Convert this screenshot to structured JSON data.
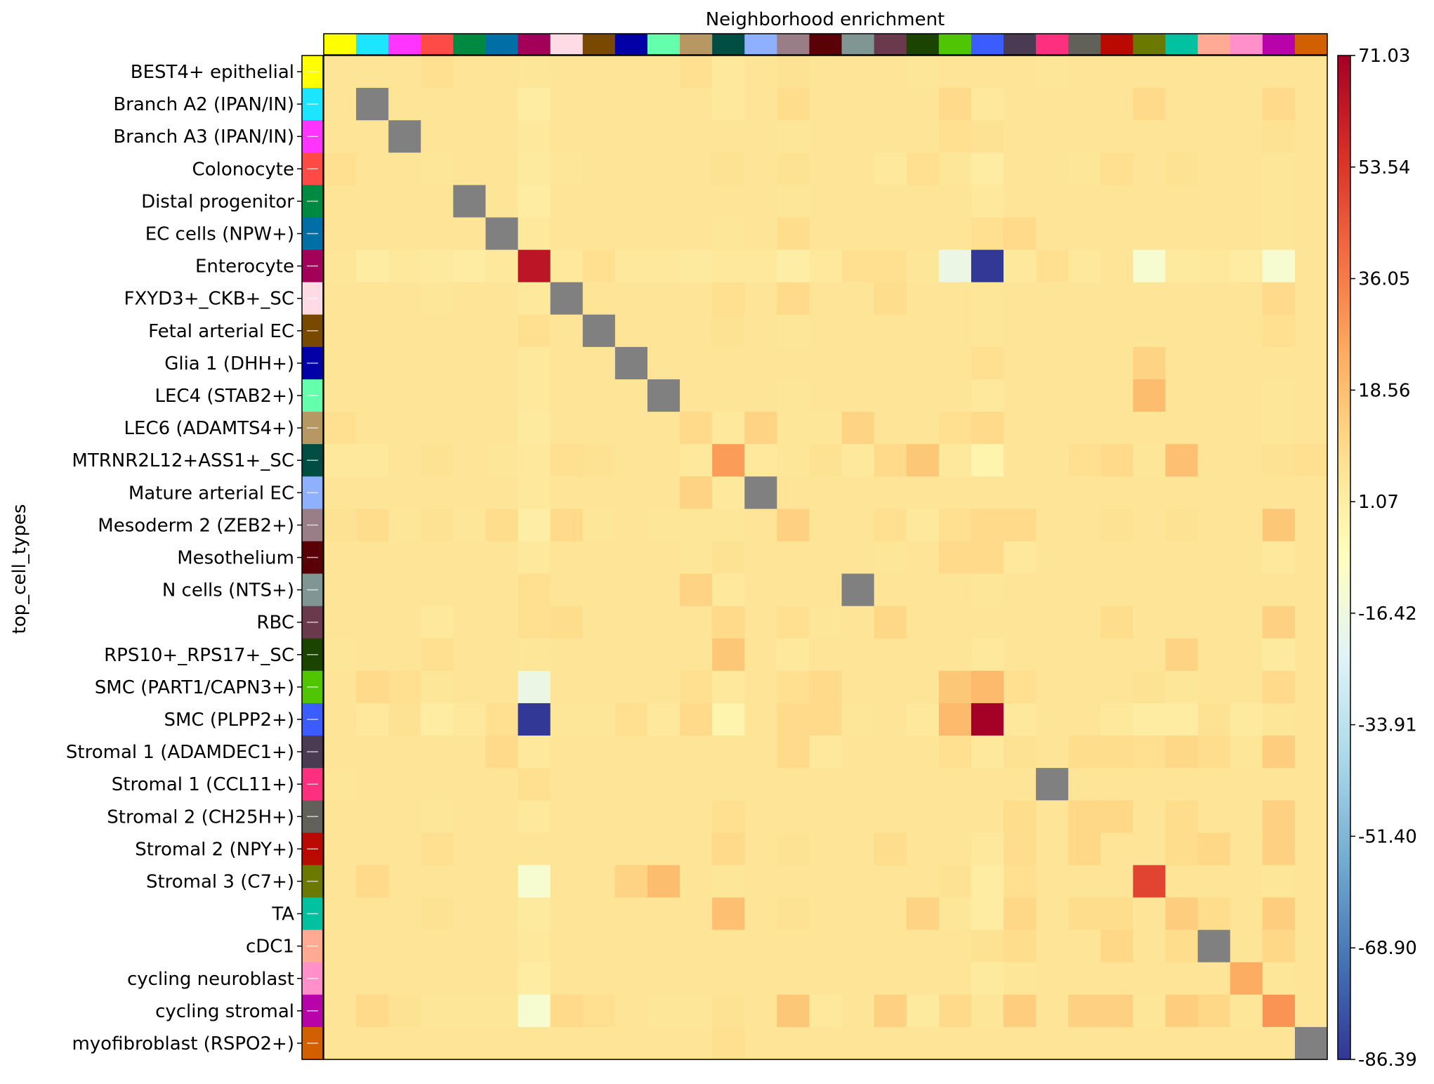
{
  "chart_data": {
    "type": "heatmap",
    "title": "Neighborhood enrichment",
    "ylabel": "top_cell_types",
    "xlabel": "",
    "categories": [
      "BEST4+ epithelial",
      "Branch A2 (IPAN/IN)",
      "Branch A3 (IPAN/IN)",
      "Colonocyte",
      "Distal progenitor",
      "EC cells (NPW+)",
      "Enterocyte",
      "FXYD3+_CKB+_SC",
      "Fetal arterial EC",
      "Glia 1 (DHH+)",
      "LEC4 (STAB2+)",
      "LEC6 (ADAMTS4+)",
      "MTRNR2L12+ASS1+_SC",
      "Mature arterial EC",
      "Mesoderm 2 (ZEB2+)",
      "Mesothelium",
      "N cells (NTS+)",
      "RBC",
      "RPS10+_RPS17+_SC",
      "SMC (PART1/CAPN3+)",
      "SMC (PLPP2+)",
      "Stromal 1 (ADAMDEC1+)",
      "Stromal 1 (CCL11+)",
      "Stromal 2 (CH25H+)",
      "Stromal 2 (NPY+)",
      "Stromal 3 (C7+)",
      "TA",
      "cDC1",
      "cycling neuroblast",
      "cycling stromal",
      "myofibroblast (RSPO2+)"
    ],
    "category_colors": [
      "#ffff00",
      "#1ce6ff",
      "#ff34ff",
      "#ff4a46",
      "#008941",
      "#006fa6",
      "#a30059",
      "#ffdbe5",
      "#7a4900",
      "#0000a6",
      "#63ffac",
      "#b79762",
      "#004d43",
      "#8fb0ff",
      "#997d87",
      "#5a0007",
      "#809693",
      "#6a3a4c",
      "#1b4400",
      "#4fc601",
      "#3b5dff",
      "#4a3b53",
      "#ff2f80",
      "#61615a",
      "#ba0900",
      "#6b7900",
      "#00c2a0",
      "#ffaa92",
      "#ff90c9",
      "#b903aa",
      "#d16100"
    ],
    "diagonal_masked": [
      1,
      2,
      4,
      5,
      7,
      8,
      9,
      10,
      13,
      16,
      22,
      27,
      30
    ],
    "nan_color": "#808080",
    "base_value": 6,
    "cells": [
      [
        0,
        3,
        8
      ],
      [
        0,
        6,
        4
      ],
      [
        0,
        11,
        10
      ],
      [
        0,
        12,
        5
      ],
      [
        0,
        14,
        7
      ],
      [
        0,
        18,
        5
      ],
      [
        0,
        22,
        5
      ],
      [
        1,
        6,
        3
      ],
      [
        1,
        12,
        5
      ],
      [
        1,
        14,
        9
      ],
      [
        1,
        19,
        11
      ],
      [
        1,
        20,
        5
      ],
      [
        1,
        25,
        9
      ],
      [
        1,
        29,
        9
      ],
      [
        2,
        6,
        5
      ],
      [
        2,
        14,
        5
      ],
      [
        2,
        20,
        7
      ],
      [
        3,
        0,
        8
      ],
      [
        3,
        3,
        5
      ],
      [
        3,
        6,
        4
      ],
      [
        3,
        7,
        5
      ],
      [
        3,
        12,
        7
      ],
      [
        3,
        14,
        7
      ],
      [
        3,
        17,
        4
      ],
      [
        3,
        18,
        8
      ],
      [
        3,
        19,
        5
      ],
      [
        3,
        20,
        1
      ],
      [
        3,
        23,
        5
      ],
      [
        3,
        24,
        8
      ],
      [
        3,
        26,
        7
      ],
      [
        3,
        29,
        4
      ],
      [
        4,
        6,
        4
      ],
      [
        4,
        14,
        5
      ],
      [
        4,
        20,
        4
      ],
      [
        5,
        14,
        11
      ],
      [
        5,
        20,
        8
      ],
      [
        5,
        21,
        10
      ],
      [
        6,
        0,
        5
      ],
      [
        6,
        1,
        2
      ],
      [
        6,
        2,
        4
      ],
      [
        6,
        3,
        3
      ],
      [
        6,
        4,
        2
      ],
      [
        6,
        5,
        4
      ],
      [
        6,
        6,
        64
      ],
      [
        6,
        7,
        4
      ],
      [
        6,
        8,
        8
      ],
      [
        6,
        9,
        3
      ],
      [
        6,
        10,
        3
      ],
      [
        6,
        11,
        2
      ],
      [
        6,
        12,
        4
      ],
      [
        6,
        13,
        4
      ],
      [
        6,
        14,
        -7
      ],
      [
        6,
        15,
        3
      ],
      [
        6,
        16,
        8
      ],
      [
        6,
        17,
        8
      ],
      [
        6,
        18,
        5
      ],
      [
        6,
        19,
        -18
      ],
      [
        6,
        20,
        -86
      ],
      [
        6,
        21,
        4
      ],
      [
        6,
        22,
        6
      ],
      [
        6,
        23,
        3
      ],
      [
        6,
        24,
        6
      ],
      [
        6,
        25,
        -12
      ],
      [
        6,
        26,
        3
      ],
      [
        6,
        27,
        3
      ],
      [
        6,
        28,
        2
      ],
      [
        6,
        29,
        -12
      ],
      [
        6,
        30,
        6
      ],
      [
        7,
        6,
        4
      ],
      [
        7,
        12,
        8
      ],
      [
        7,
        14,
        10
      ],
      [
        7,
        17,
        10
      ],
      [
        7,
        20,
        5
      ],
      [
        7,
        29,
        10
      ],
      [
        8,
        6,
        8
      ],
      [
        8,
        20,
        4
      ],
      [
        9,
        6,
        4
      ],
      [
        9,
        20,
        10
      ],
      [
        9,
        25,
        17
      ],
      [
        10,
        6,
        4
      ],
      [
        10,
        20,
        4
      ],
      [
        10,
        25,
        18
      ],
      [
        11,
        0,
        8
      ],
      [
        11,
        6,
        3
      ],
      [
        11,
        11,
        10
      ],
      [
        11,
        13,
        10
      ],
      [
        11,
        16,
        11
      ],
      [
        11,
        19,
        9
      ],
      [
        11,
        20,
        10
      ],
      [
        12,
        0,
        4
      ],
      [
        12,
        1,
        4
      ],
      [
        12,
        5,
        5
      ],
      [
        12,
        7,
        8
      ],
      [
        12,
        8,
        7
      ],
      [
        12,
        11,
        4
      ],
      [
        12,
        12,
        28
      ],
      [
        12,
        13,
        4
      ],
      [
        12,
        14,
        4
      ],
      [
        12,
        15,
        7
      ],
      [
        12,
        16,
        5
      ],
      [
        12,
        17,
        10
      ],
      [
        12,
        18,
        19
      ],
      [
        12,
        19,
        4
      ],
      [
        12,
        20,
        -1
      ],
      [
        12,
        23,
        9
      ],
      [
        12,
        24,
        9
      ],
      [
        12,
        25,
        5
      ],
      [
        12,
        26,
        17
      ],
      [
        12,
        30,
        8
      ],
      [
        13,
        11,
        12
      ],
      [
        14,
        1,
        9
      ],
      [
        14,
        2,
        5
      ],
      [
        14,
        5,
        9
      ],
      [
        14,
        6,
        1
      ],
      [
        14,
        7,
        10
      ],
      [
        14,
        8,
        5
      ],
      [
        14,
        10,
        5
      ],
      [
        14,
        11,
        5
      ],
      [
        14,
        12,
        5
      ],
      [
        14,
        14,
        13
      ],
      [
        14,
        17,
        8
      ],
      [
        14,
        18,
        4
      ],
      [
        14,
        19,
        8
      ],
      [
        14,
        20,
        9
      ],
      [
        14,
        21,
        10
      ],
      [
        14,
        24,
        7
      ],
      [
        14,
        26,
        7
      ],
      [
        14,
        29,
        17
      ],
      [
        15,
        6,
        4
      ],
      [
        15,
        11,
        5
      ],
      [
        15,
        17,
        5
      ],
      [
        15,
        19,
        9
      ],
      [
        15,
        20,
        10
      ],
      [
        15,
        21,
        4
      ],
      [
        16,
        6,
        8
      ],
      [
        16,
        11,
        12
      ],
      [
        16,
        12,
        4
      ],
      [
        16,
        20,
        5
      ],
      [
        17,
        6,
        8
      ],
      [
        17,
        7,
        9
      ],
      [
        17,
        14,
        8
      ],
      [
        17,
        17,
        11
      ],
      [
        17,
        29,
        14
      ],
      [
        18,
        3,
        8
      ],
      [
        18,
        12,
        16
      ],
      [
        18,
        20,
        3
      ],
      [
        18,
        26,
        12
      ],
      [
        18,
        29,
        4
      ],
      [
        19,
        1,
        10
      ],
      [
        19,
        2,
        8
      ],
      [
        19,
        3,
        5
      ],
      [
        19,
        6,
        -18
      ],
      [
        19,
        11,
        8
      ],
      [
        19,
        12,
        4
      ],
      [
        19,
        14,
        8
      ],
      [
        19,
        15,
        10
      ],
      [
        19,
        19,
        16
      ],
      [
        19,
        20,
        23
      ],
      [
        19,
        21,
        8
      ],
      [
        19,
        25,
        5
      ],
      [
        19,
        26,
        5
      ],
      [
        19,
        29,
        10
      ],
      [
        20,
        1,
        4
      ],
      [
        20,
        3,
        2
      ],
      [
        20,
        5,
        8
      ],
      [
        20,
        6,
        -86
      ],
      [
        20,
        8,
        5
      ],
      [
        20,
        9,
        8
      ],
      [
        20,
        10,
        4
      ],
      [
        20,
        11,
        10
      ],
      [
        20,
        12,
        -2
      ],
      [
        20,
        14,
        10
      ],
      [
        20,
        15,
        10
      ],
      [
        20,
        18,
        4
      ],
      [
        20,
        19,
        20
      ],
      [
        20,
        20,
        71
      ],
      [
        20,
        21,
        4
      ],
      [
        20,
        25,
        2
      ],
      [
        20,
        26,
        2
      ],
      [
        20,
        27,
        8
      ],
      [
        20,
        28,
        4
      ],
      [
        21,
        5,
        10
      ],
      [
        21,
        14,
        10
      ],
      [
        21,
        19,
        8
      ],
      [
        21,
        20,
        4
      ],
      [
        21,
        21,
        7
      ],
      [
        21,
        24,
        8
      ],
      [
        21,
        26,
        12
      ],
      [
        21,
        27,
        10
      ],
      [
        21,
        29,
        14
      ],
      [
        22,
        6,
        8
      ],
      [
        23,
        6,
        4
      ],
      [
        23,
        12,
        8
      ],
      [
        23,
        21,
        9
      ],
      [
        23,
        23,
        11
      ],
      [
        23,
        24,
        12
      ],
      [
        23,
        26,
        9
      ],
      [
        23,
        29,
        15
      ],
      [
        24,
        12,
        10
      ],
      [
        24,
        17,
        9
      ],
      [
        24,
        20,
        4
      ],
      [
        24,
        21,
        9
      ],
      [
        24,
        23,
        11
      ],
      [
        24,
        26,
        8
      ],
      [
        24,
        27,
        11
      ],
      [
        24,
        29,
        12
      ],
      [
        25,
        1,
        10
      ],
      [
        25,
        6,
        -12
      ],
      [
        25,
        9,
        12
      ],
      [
        25,
        10,
        19
      ],
      [
        25,
        19,
        7
      ],
      [
        25,
        20,
        2
      ],
      [
        25,
        21,
        8
      ],
      [
        25,
        25,
        50
      ],
      [
        25,
        29,
        4
      ],
      [
        26,
        12,
        18
      ],
      [
        26,
        18,
        12
      ],
      [
        26,
        20,
        2
      ],
      [
        26,
        21,
        11
      ],
      [
        26,
        23,
        9
      ],
      [
        26,
        24,
        9
      ],
      [
        26,
        26,
        14
      ],
      [
        26,
        29,
        14
      ],
      [
        27,
        6,
        4
      ],
      [
        27,
        20,
        7
      ],
      [
        27,
        21,
        9
      ],
      [
        27,
        24,
        11
      ],
      [
        27,
        26,
        9
      ],
      [
        27,
        29,
        10
      ],
      [
        28,
        6,
        2
      ],
      [
        28,
        20,
        3
      ],
      [
        28,
        21,
        5
      ],
      [
        28,
        28,
        24
      ],
      [
        29,
        1,
        10
      ],
      [
        29,
        2,
        7
      ],
      [
        29,
        3,
        5
      ],
      [
        29,
        4,
        5
      ],
      [
        29,
        5,
        5
      ],
      [
        29,
        6,
        -12
      ],
      [
        29,
        7,
        10
      ],
      [
        29,
        8,
        8
      ],
      [
        29,
        10,
        5
      ],
      [
        29,
        11,
        5
      ],
      [
        29,
        12,
        7
      ],
      [
        29,
        14,
        16
      ],
      [
        29,
        15,
        4
      ],
      [
        29,
        17,
        13
      ],
      [
        29,
        18,
        3
      ],
      [
        29,
        19,
        10
      ],
      [
        29,
        20,
        5
      ],
      [
        29,
        21,
        14
      ],
      [
        29,
        23,
        13
      ],
      [
        29,
        24,
        13
      ],
      [
        29,
        25,
        5
      ],
      [
        29,
        26,
        14
      ],
      [
        29,
        27,
        11
      ],
      [
        29,
        28,
        5
      ],
      [
        29,
        29,
        30
      ],
      [
        30,
        12,
        8
      ]
    ],
    "colorbar": {
      "min": -86.39,
      "max": 71.03,
      "ticks": [
        "71.03",
        "53.54",
        "36.05",
        "18.56",
        "1.07",
        "-16.42",
        "-33.91",
        "-51.40",
        "-68.90",
        "-86.39"
      ],
      "colormap": "RdYlBu_r"
    },
    "grid": false,
    "legend": "none"
  }
}
